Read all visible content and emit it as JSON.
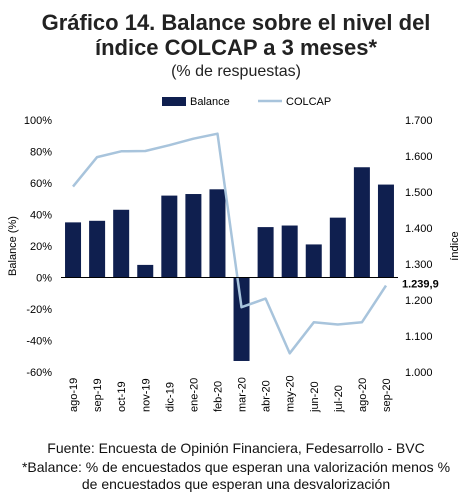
{
  "title_line1": "Gráfico 14. Balance sobre el nivel del",
  "title_line2": "índice COLCAP a 3 meses*",
  "subtitle": "(% de respuestas)",
  "footer": {
    "source": "Fuente: Encuesta de Opinión Financiera, Fedesarrollo - BVC",
    "note_line1": "*Balance: % de encuestados que esperan una valorización menos %",
    "note_line2": "de encuestados que esperan una desvalorización"
  },
  "colors": {
    "bar": "#0f1f4f",
    "line": "#a8c4dc",
    "axis": "#000000"
  },
  "chart_data": {
    "type": "bar",
    "categories": [
      "ago-19",
      "sep-19",
      "oct-19",
      "nov-19",
      "dic-19",
      "ene-20",
      "feb-20",
      "mar-20",
      "abr-20",
      "may-20",
      "jun-20",
      "jul-20",
      "ago-20",
      "sep-20"
    ],
    "series": [
      {
        "name": "Balance",
        "type": "bar",
        "axis": "left",
        "values": [
          35,
          36,
          43,
          8,
          52,
          53,
          56,
          -53,
          32,
          33,
          21,
          38,
          70,
          59
        ]
      },
      {
        "name": "COLCAP",
        "type": "line",
        "axis": "right",
        "values": [
          1515,
          1597,
          1613,
          1614,
          1630,
          1648,
          1662,
          1180,
          1204,
          1052,
          1138,
          1132,
          1138,
          1239.9
        ]
      }
    ],
    "ylabel": "Balance (%)",
    "y2label": "índice",
    "ylim": [
      -60,
      100
    ],
    "y2lim": [
      1000,
      1700
    ],
    "yticks": [
      "100%",
      "80%",
      "60%",
      "40%",
      "20%",
      "0%",
      "-20%",
      "-40%",
      "-60%"
    ],
    "y2ticks": [
      "1.700",
      "1.600",
      "1.500",
      "1.400",
      "1.300",
      "1.200",
      "1.100",
      "1.000"
    ],
    "annotation": "1.239,9",
    "legend_position": "top-center"
  }
}
